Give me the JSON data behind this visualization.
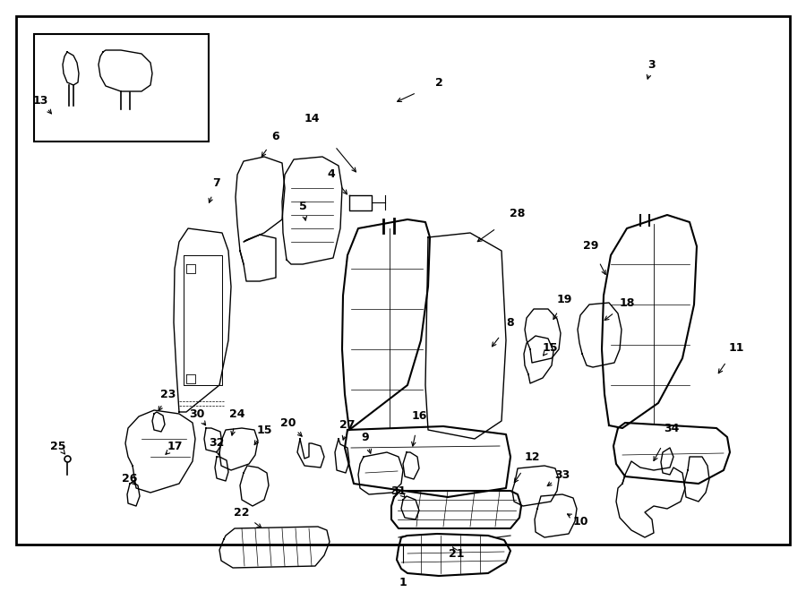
{
  "background_color": "#ffffff",
  "border_color": "#000000",
  "text_color": "#000000",
  "fig_width": 9.0,
  "fig_height": 6.61
}
